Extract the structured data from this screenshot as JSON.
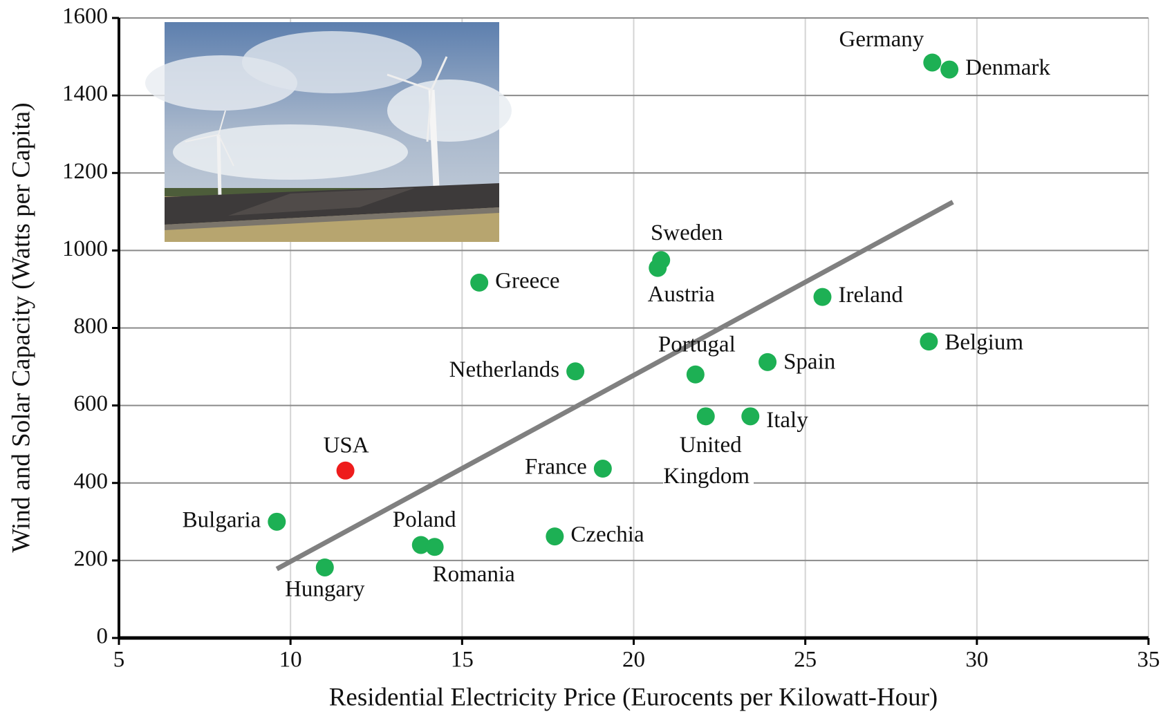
{
  "chart_data": {
    "type": "scatter",
    "xlabel": "Residential Electricity Price (Eurocents per Kilowatt-Hour)",
    "ylabel": "Wind and Solar Capacity (Watts per Capita)",
    "xlim": [
      5,
      35
    ],
    "ylim": [
      0,
      1600
    ],
    "xticks": [
      5,
      10,
      15,
      20,
      25,
      30,
      35
    ],
    "yticks": [
      0,
      200,
      400,
      600,
      800,
      1000,
      1200,
      1400,
      1600
    ],
    "grid": true,
    "points": [
      {
        "label": "Germany",
        "x": 28.7,
        "y": 1485,
        "color": "#1db054"
      },
      {
        "label": "Denmark",
        "x": 29.2,
        "y": 1467,
        "color": "#1db054"
      },
      {
        "label": "Sweden",
        "x": 20.8,
        "y": 975,
        "color": "#1db054"
      },
      {
        "label": "Austria",
        "x": 20.7,
        "y": 955,
        "color": "#1db054"
      },
      {
        "label": "Greece",
        "x": 15.5,
        "y": 917,
        "color": "#1db054"
      },
      {
        "label": "Ireland",
        "x": 25.5,
        "y": 880,
        "color": "#1db054"
      },
      {
        "label": "Belgium",
        "x": 28.6,
        "y": 765,
        "color": "#1db054"
      },
      {
        "label": "Netherlands",
        "x": 18.3,
        "y": 688,
        "color": "#1db054"
      },
      {
        "label": "Portugal",
        "x": 21.8,
        "y": 680,
        "color": "#1db054"
      },
      {
        "label": "Spain",
        "x": 23.9,
        "y": 712,
        "color": "#1db054"
      },
      {
        "label": "United Kingdom",
        "x": 22.1,
        "y": 572,
        "color": "#1db054"
      },
      {
        "label": "Italy",
        "x": 23.4,
        "y": 572,
        "color": "#1db054"
      },
      {
        "label": "France",
        "x": 19.1,
        "y": 437,
        "color": "#1db054"
      },
      {
        "label": "USA",
        "x": 11.6,
        "y": 432,
        "color": "#ee1c1c"
      },
      {
        "label": "Bulgaria",
        "x": 9.6,
        "y": 300,
        "color": "#1db054"
      },
      {
        "label": "Poland",
        "x": 13.8,
        "y": 240,
        "color": "#1db054"
      },
      {
        "label": "Romania",
        "x": 14.2,
        "y": 235,
        "color": "#1db054"
      },
      {
        "label": "Czechia",
        "x": 17.7,
        "y": 262,
        "color": "#1db054"
      },
      {
        "label": "Hungary",
        "x": 11.0,
        "y": 182,
        "color": "#1db054"
      }
    ],
    "trendline": {
      "x": [
        9.6,
        29.3
      ],
      "y": [
        178,
        1125
      ],
      "color": "#808080"
    }
  }
}
